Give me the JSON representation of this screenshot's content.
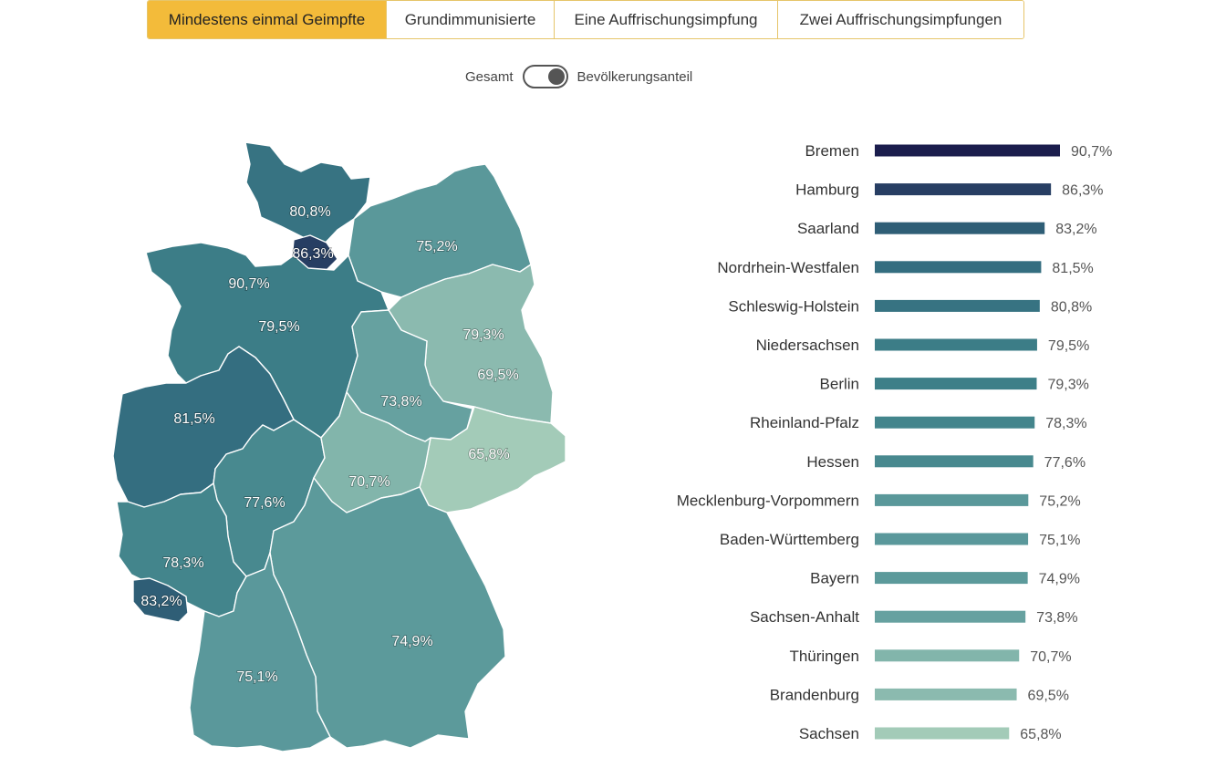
{
  "tabs": [
    {
      "label": "Mindestens einmal Geimpfte",
      "active": true
    },
    {
      "label": "Grundimmunisierte",
      "active": false
    },
    {
      "label": "Eine Auffrischungsimpfung",
      "active": false
    },
    {
      "label": "Zwei Auffrischungsimpfungen",
      "active": false
    }
  ],
  "toggle": {
    "left_label": "Gesamt",
    "right_label": "Bevölkerungsanteil",
    "selected": "Bevölkerungsanteil"
  },
  "colors": {
    "darkest": "#1b1d4d",
    "lightest": "#a3cbb8",
    "tab_active": "#f3bb3a"
  },
  "chart_data": [
    {
      "type": "map",
      "regions": [
        {
          "name": "Schleswig-Holstein",
          "value_label": "80,8%",
          "value": 80.8
        },
        {
          "name": "Hamburg",
          "value_label": "86,3%",
          "value": 86.3
        },
        {
          "name": "Mecklenburg-Vorpommern",
          "value_label": "75,2%",
          "value": 75.2
        },
        {
          "name": "Bremen",
          "value_label": "90,7%",
          "value": 90.7
        },
        {
          "name": "Niedersachsen",
          "value_label": "79,5%",
          "value": 79.5
        },
        {
          "name": "Berlin",
          "value_label": "79,3%",
          "value": 79.3
        },
        {
          "name": "Brandenburg",
          "value_label": "69,5%",
          "value": 69.5
        },
        {
          "name": "Sachsen-Anhalt",
          "value_label": "73,8%",
          "value": 73.8
        },
        {
          "name": "Nordrhein-Westfalen",
          "value_label": "81,5%",
          "value": 81.5
        },
        {
          "name": "Sachsen",
          "value_label": "65,8%",
          "value": 65.8
        },
        {
          "name": "Hessen",
          "value_label": "77,6%",
          "value": 77.6
        },
        {
          "name": "Thüringen",
          "value_label": "70,7%",
          "value": 70.7
        },
        {
          "name": "Rheinland-Pfalz",
          "value_label": "78,3%",
          "value": 78.3
        },
        {
          "name": "Saarland",
          "value_label": "83,2%",
          "value": 83.2
        },
        {
          "name": "Bayern",
          "value_label": "74,9%",
          "value": 74.9
        },
        {
          "name": "Baden-Württemberg",
          "value_label": "75,1%",
          "value": 75.1
        }
      ]
    },
    {
      "type": "bar",
      "orientation": "horizontal",
      "categories": [
        "Bremen",
        "Hamburg",
        "Saarland",
        "Nordrhein-Westfalen",
        "Schleswig-Holstein",
        "Niedersachsen",
        "Berlin",
        "Rheinland-Pfalz",
        "Hessen",
        "Mecklenburg-Vorpommern",
        "Baden-Württemberg",
        "Bayern",
        "Sachsen-Anhalt",
        "Thüringen",
        "Brandenburg",
        "Sachsen"
      ],
      "values": [
        90.7,
        86.3,
        83.2,
        81.5,
        80.8,
        79.5,
        79.3,
        78.3,
        77.6,
        75.2,
        75.1,
        74.9,
        73.8,
        70.7,
        69.5,
        65.8
      ],
      "value_labels": [
        "90,7%",
        "86,3%",
        "83,2%",
        "81,5%",
        "80,8%",
        "79,5%",
        "79,3%",
        "78,3%",
        "77,6%",
        "75,2%",
        "75,1%",
        "74,9%",
        "73,8%",
        "70,7%",
        "69,5%",
        "65,8%"
      ],
      "unit": "%"
    }
  ]
}
